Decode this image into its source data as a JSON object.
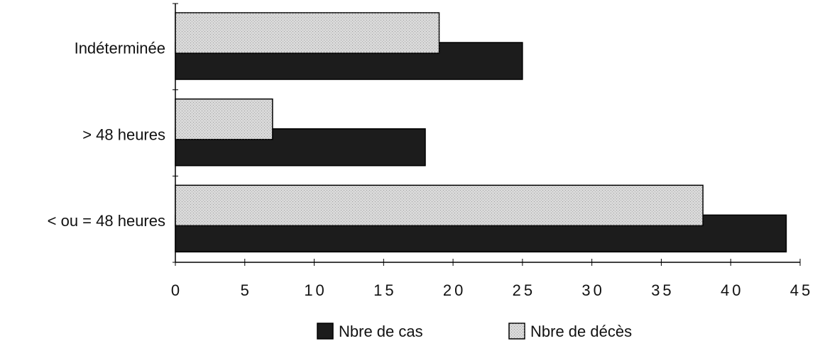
{
  "chart_data": {
    "type": "bar",
    "orientation": "horizontal",
    "categories": [
      "Indéterminée",
      "> 48 heures",
      "< ou = 48 heures"
    ],
    "series": [
      {
        "name": "Nbre de cas",
        "color": "#1c1c1c",
        "values": [
          25,
          18,
          44
        ]
      },
      {
        "name": "Nbre de décès",
        "color": "#d9d9d9",
        "values": [
          19,
          7,
          38
        ]
      }
    ],
    "xlim": [
      0,
      45
    ],
    "xticks": [
      0,
      5,
      10,
      15,
      20,
      25,
      30,
      35,
      40,
      45
    ],
    "legend": "bottom"
  }
}
